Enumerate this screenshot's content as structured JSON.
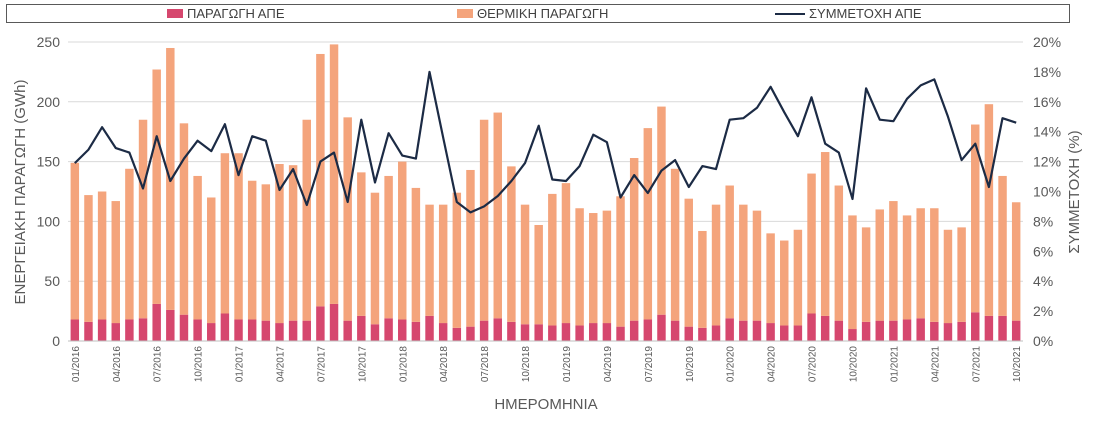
{
  "legend": {
    "res": "ΠΑΡΑΓΩΓΗ ΑΠΕ",
    "thermal": "ΘΕΡΜΙΚΗ ΠΑΡΑΓΩΓΗ",
    "share": "ΣΥΜΜΕΤΟΧΗ ΑΠΕ"
  },
  "colors": {
    "res": "#D6476E",
    "thermal": "#F4A47C",
    "share": "#1C2B45",
    "grid": "#D9D9D9"
  },
  "chart_data": {
    "type": "bar",
    "subtype": "stacked bar with secondary-axis line",
    "xlabel": "ΗΜΕΡΟΜΗΝΙΑ",
    "ylabel": "ΕΝΕΡΓΕΙΑΚΗ ΠΑΡΑΓΩΓΗ (GWh)",
    "y2label": "ΣΥΜΜΕΤΟΧΗ (%)",
    "ylim": [
      0,
      250
    ],
    "yticks": [
      0,
      50,
      100,
      150,
      200,
      250
    ],
    "y2lim": [
      0,
      20
    ],
    "y2ticks": [
      "0%",
      "2%",
      "4%",
      "6%",
      "8%",
      "10%",
      "12%",
      "14%",
      "16%",
      "18%",
      "20%"
    ],
    "grid": true,
    "legend_position": "top",
    "x_tick_labels": [
      "01/2016",
      "04/2016",
      "07/2016",
      "10/2016",
      "01/2017",
      "04/2017",
      "07/2017",
      "10/2017",
      "01/2018",
      "04/2018",
      "07/2018",
      "10/2018",
      "01/2019",
      "04/2019",
      "07/2019",
      "10/2019",
      "01/2020",
      "04/2020",
      "07/2020",
      "10/2020",
      "01/2021",
      "04/2021",
      "07/2021",
      "10/2021"
    ],
    "categories": [
      "01/2016",
      "02/2016",
      "03/2016",
      "04/2016",
      "05/2016",
      "06/2016",
      "07/2016",
      "08/2016",
      "09/2016",
      "10/2016",
      "11/2016",
      "12/2016",
      "01/2017",
      "02/2017",
      "03/2017",
      "04/2017",
      "05/2017",
      "06/2017",
      "07/2017",
      "08/2017",
      "09/2017",
      "10/2017",
      "11/2017",
      "12/2017",
      "01/2018",
      "02/2018",
      "03/2018",
      "04/2018",
      "05/2018",
      "06/2018",
      "07/2018",
      "08/2018",
      "09/2018",
      "10/2018",
      "11/2018",
      "12/2018",
      "01/2019",
      "02/2019",
      "03/2019",
      "04/2019",
      "05/2019",
      "06/2019",
      "07/2019",
      "08/2019",
      "09/2019",
      "10/2019",
      "11/2019",
      "12/2019",
      "01/2020",
      "02/2020",
      "03/2020",
      "04/2020",
      "05/2020",
      "06/2020",
      "07/2020",
      "08/2020",
      "09/2020",
      "10/2020",
      "11/2020",
      "12/2020",
      "01/2021",
      "02/2021",
      "03/2021",
      "04/2021",
      "05/2021",
      "06/2021",
      "07/2021",
      "08/2021",
      "09/2021",
      "10/2021"
    ],
    "series": [
      {
        "name": "ΠΑΡΑΓΩΓΗ ΑΠΕ",
        "axis": "left",
        "values": [
          18,
          16,
          18,
          15,
          18,
          19,
          31,
          26,
          22,
          18,
          15,
          23,
          18,
          18,
          17,
          15,
          17,
          17,
          29,
          31,
          17,
          21,
          14,
          19,
          18,
          16,
          21,
          15,
          11,
          12,
          17,
          19,
          16,
          14,
          14,
          13,
          15,
          13,
          15,
          15,
          12,
          17,
          18,
          22,
          17,
          12,
          11,
          13,
          19,
          17,
          17,
          15,
          13,
          13,
          23,
          21,
          17,
          10,
          16,
          17,
          17,
          18,
          19,
          16,
          15,
          16,
          24,
          21,
          21,
          17
        ]
      },
      {
        "name": "ΘΕΡΜΙΚΗ ΠΑΡΑΓΩΓΗ",
        "axis": "left",
        "values": [
          131,
          106,
          107,
          102,
          126,
          166,
          196,
          219,
          160,
          120,
          105,
          134,
          139,
          116,
          114,
          133,
          130,
          168,
          211,
          217,
          170,
          120,
          110,
          119,
          132,
          112,
          93,
          99,
          113,
          131,
          168,
          172,
          130,
          100,
          83,
          110,
          117,
          98,
          92,
          94,
          109,
          136,
          160,
          174,
          127,
          107,
          81,
          101,
          111,
          97,
          92,
          75,
          71,
          80,
          117,
          137,
          113,
          95,
          79,
          93,
          100,
          87,
          92,
          95,
          78,
          79,
          157,
          177,
          117,
          99
        ]
      },
      {
        "name": "ΣΥΜΜΕΤΟΧΗ ΑΠΕ",
        "axis": "right",
        "unit": "%",
        "values": [
          11.9,
          12.8,
          14.3,
          12.9,
          12.6,
          10.2,
          13.7,
          10.7,
          12.2,
          13.4,
          12.7,
          14.5,
          11.1,
          13.7,
          13.4,
          10.1,
          11.5,
          9.1,
          12.0,
          12.6,
          9.3,
          14.8,
          10.6,
          13.9,
          12.4,
          12.2,
          18.0,
          13.6,
          9.3,
          8.6,
          9.0,
          9.7,
          10.7,
          11.9,
          14.4,
          10.8,
          10.7,
          11.7,
          13.8,
          13.3,
          9.6,
          11.1,
          9.9,
          11.4,
          12.1,
          10.3,
          11.7,
          11.5,
          14.8,
          14.9,
          15.6,
          17.0,
          15.3,
          13.7,
          16.3,
          13.2,
          12.6,
          9.5,
          16.9,
          14.8,
          14.7,
          16.2,
          17.1,
          17.5,
          15.0,
          12.1,
          13.2,
          10.3,
          14.9,
          14.6
        ]
      }
    ]
  }
}
